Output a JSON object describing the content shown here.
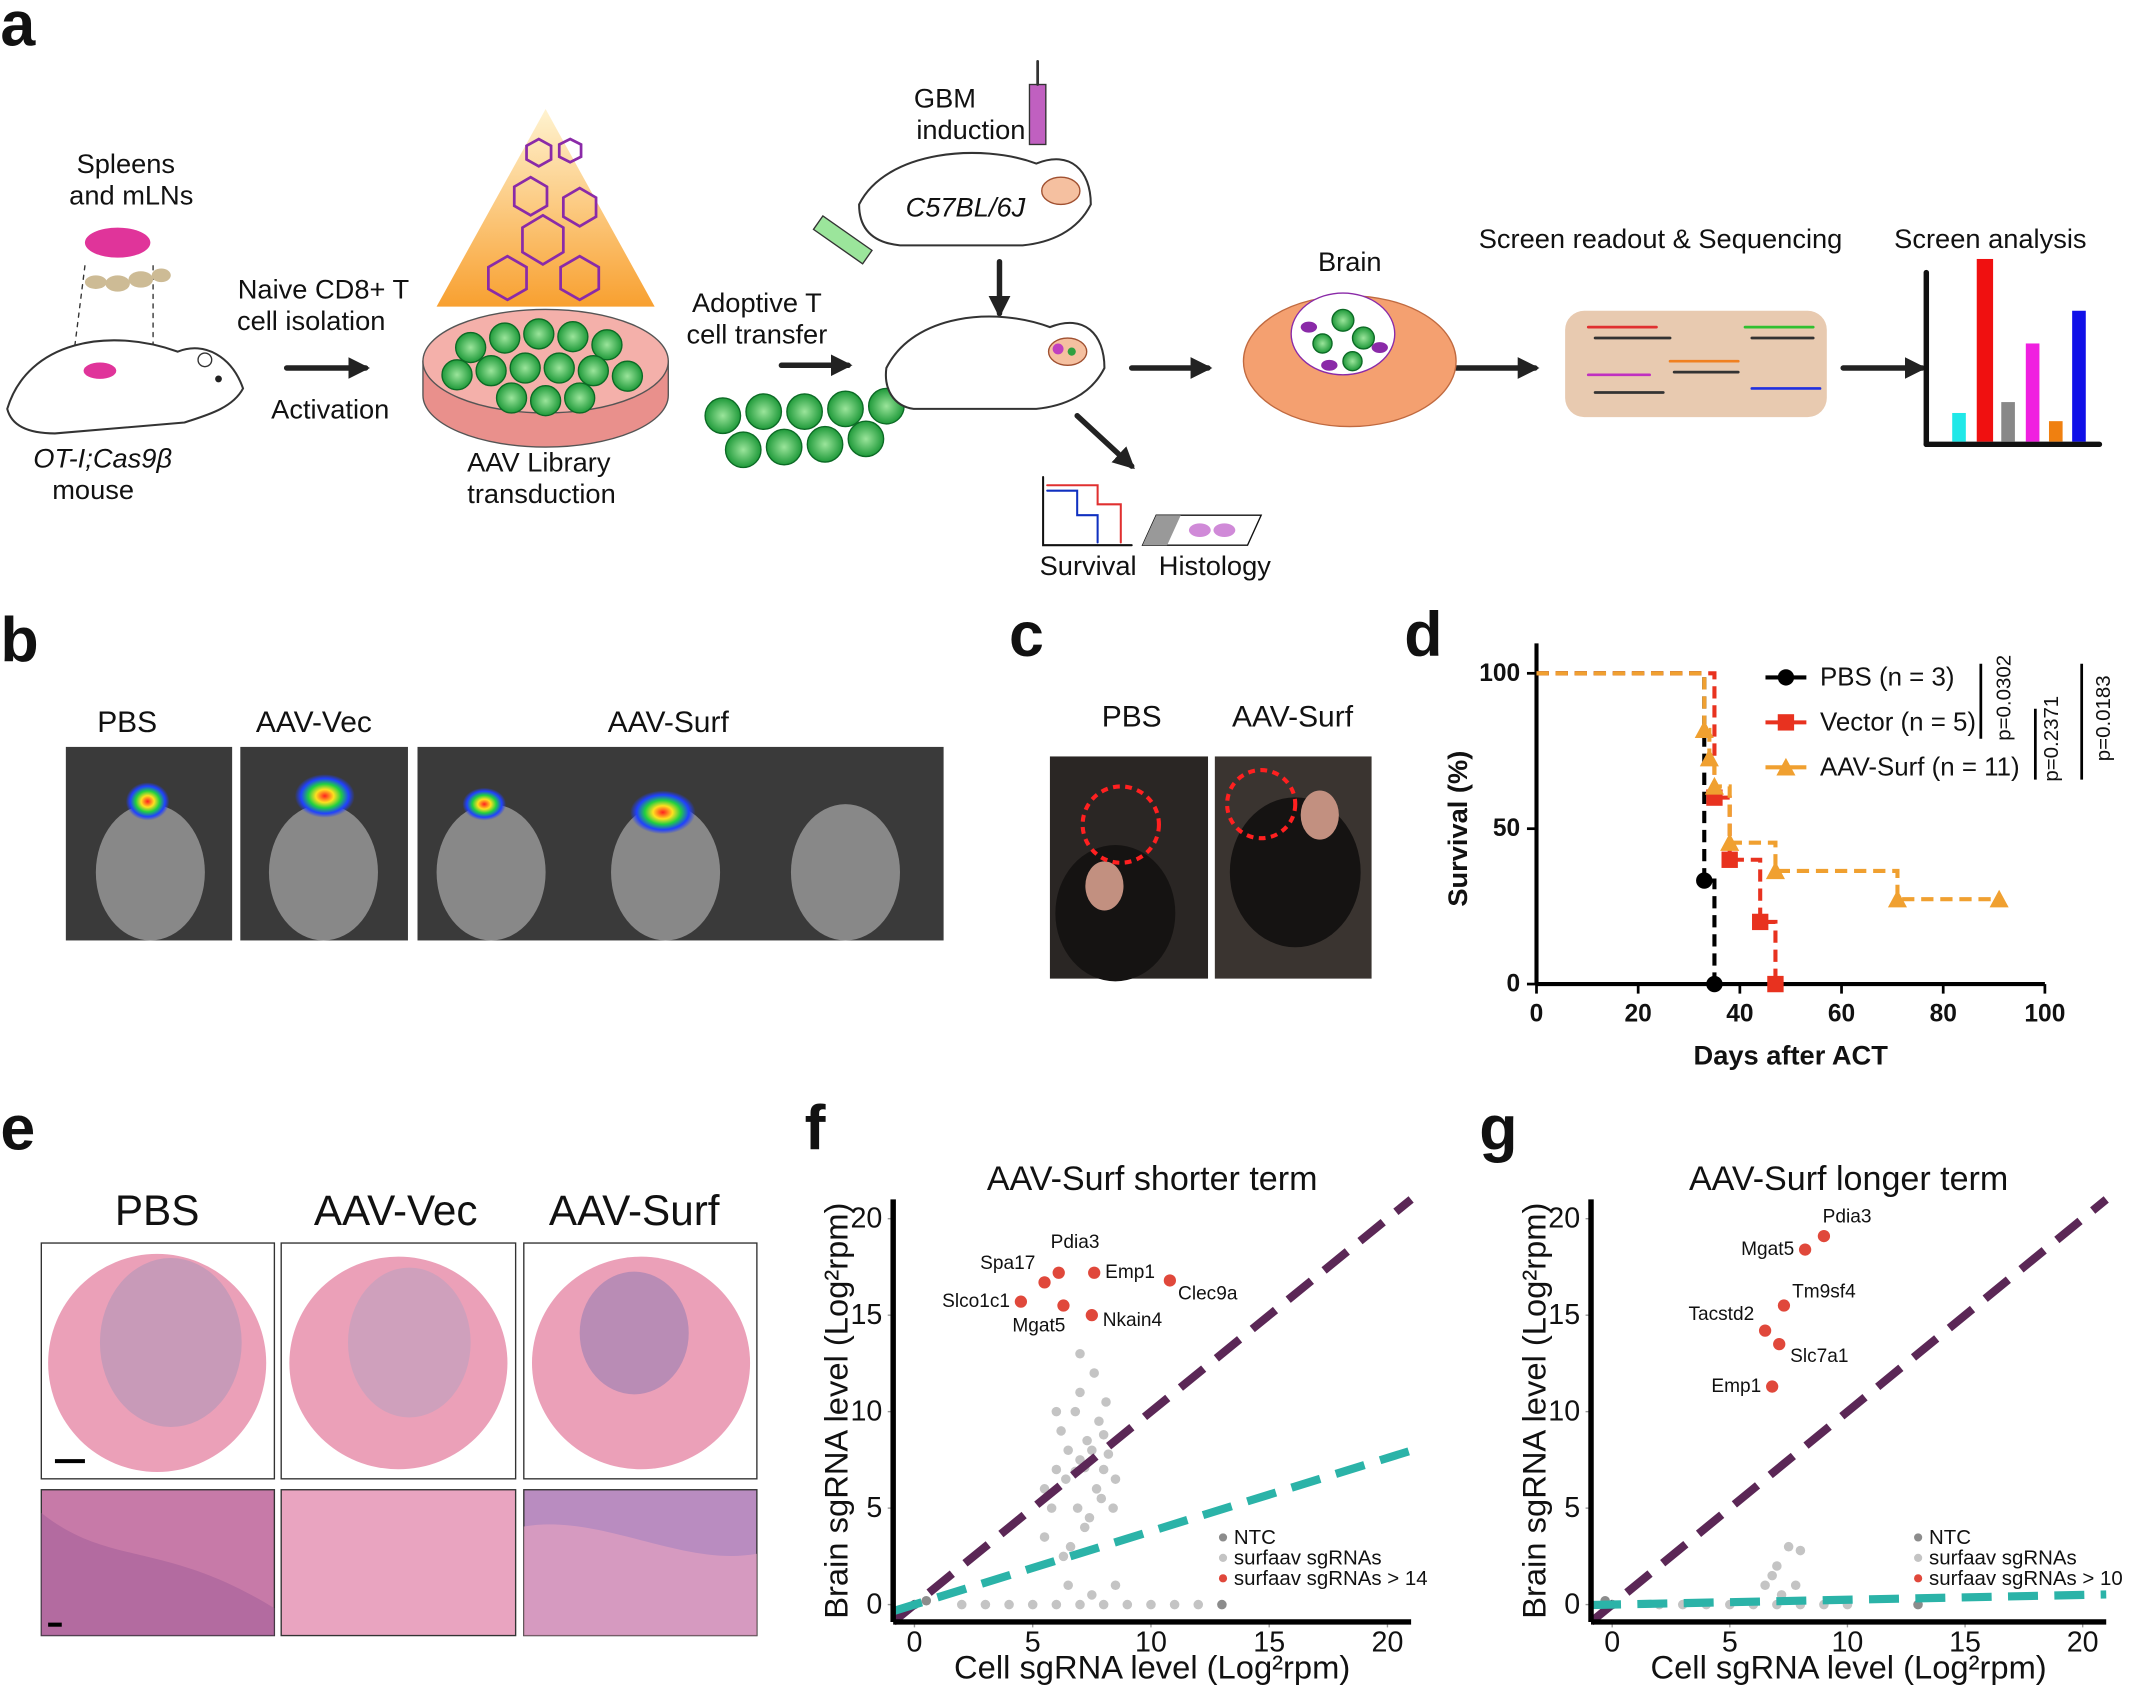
{
  "panel_labels": [
    "a",
    "b",
    "c",
    "d",
    "e",
    "f",
    "g"
  ],
  "panel_a": {
    "spleens": [
      "Spleens",
      "and mLNs"
    ],
    "mouse": [
      "OT-I;Cas9β",
      "mouse"
    ],
    "isolation": [
      "Naive CD8+ T",
      "cell isolation"
    ],
    "activation": "Activation",
    "library": [
      "AAV Library",
      "transduction"
    ],
    "transfer": [
      "Adoptive T",
      "cell transfer"
    ],
    "gbm": [
      "GBM",
      "induction"
    ],
    "strain": "C57BL/6J",
    "brain": "Brain",
    "readout": "Screen readout & Sequencing",
    "analysis": "Screen analysis",
    "survival": "Survival",
    "histology": "Histology"
  },
  "panel_b": {
    "groups": [
      "PBS",
      "AAV-Vec",
      "AAV-Surf"
    ]
  },
  "panel_c": {
    "groups": [
      "PBS",
      "AAV-Surf"
    ]
  },
  "panel_e": {
    "groups": [
      "PBS",
      "AAV-Vec",
      "AAV-Surf"
    ]
  },
  "chart_data": [
    {
      "type": "step",
      "x_label": "Days after ACT",
      "y_label": "Survival (%)",
      "xlim": [
        0,
        100
      ],
      "ylim": [
        0,
        100
      ],
      "xticks": [
        0,
        20,
        40,
        60,
        80,
        100
      ],
      "yticks": [
        0,
        50,
        100
      ],
      "legend": "top-right",
      "series": [
        {
          "name": "PBS (n = 3)",
          "color": "#000000",
          "marker": "circle",
          "x": [
            0,
            33,
            35
          ],
          "values": [
            100,
            33.3,
            0
          ]
        },
        {
          "name": "Vector (n = 5)",
          "color": "#e8321f",
          "marker": "square",
          "x": [
            0,
            35,
            38,
            44,
            47
          ],
          "values": [
            100,
            60,
            40,
            20,
            0
          ]
        },
        {
          "name": "AAV-Surf (n = 11)",
          "color": "#f0a030",
          "marker": "triangle",
          "x": [
            0,
            33,
            34,
            35,
            38,
            47,
            71,
            91
          ],
          "values": [
            100,
            81.8,
            72.7,
            63.6,
            45.5,
            36.4,
            27.3,
            27.3
          ]
        }
      ],
      "annotations": [
        "p=0.0302",
        "p=0.2371",
        "p=0.0183"
      ]
    },
    {
      "type": "scatter",
      "title": "AAV-Surf shorter term",
      "x_label": "Cell sgRNA level (Log²rpm)",
      "y_label": "Brain sgRNA level (Log²rpm)",
      "xlim": [
        -0.9,
        21
      ],
      "ylim": [
        -0.9,
        21
      ],
      "xticks": [
        0,
        5,
        10,
        15,
        20
      ],
      "yticks": [
        0,
        5,
        10,
        15,
        20
      ],
      "legend": "bottom-right",
      "reference_lines": [
        {
          "color": "#5b2756",
          "slope": 1
        },
        {
          "color": "#2bb3a8",
          "slope": 0.38
        }
      ],
      "series": [
        {
          "name": "NTC",
          "color": "#8c8c8c",
          "x": [
            0,
            0.5,
            13
          ],
          "values": [
            0,
            0.2,
            0
          ]
        },
        {
          "name": "surfaav sgRNAs",
          "color": "#c4c4c4",
          "x": [
            5.5,
            6,
            6.5,
            7,
            7.5,
            8,
            8.5,
            6.2,
            6.8,
            7.3,
            7.8,
            8.2,
            5.8,
            6.4,
            7,
            7.6,
            8.1,
            6.6,
            7.2,
            7.9,
            6.9,
            7.4,
            6.3,
            7.7,
            8.4,
            2,
            3,
            4,
            5,
            6,
            7,
            8,
            9,
            10,
            11,
            12,
            6.5,
            7.5,
            8.5,
            5.5,
            7,
            6,
            8,
            7.2,
            6.8
          ],
          "values": [
            6,
            7,
            8,
            7.5,
            8,
            7,
            6.5,
            9,
            10,
            8.5,
            9.5,
            7.8,
            5,
            6.5,
            11,
            12,
            10.5,
            3,
            4,
            5.5,
            5,
            4.5,
            2.5,
            6,
            5,
            0,
            0,
            0,
            0,
            0,
            0,
            0,
            0,
            0,
            0,
            0,
            1,
            0.5,
            1,
            3.5,
            13,
            10,
            8.8,
            7.1,
            6.9
          ]
        },
        {
          "name": "surfaav sgRNAs > 14",
          "color": "#e0483b",
          "x": [
            4.5,
            5.5,
            6.1,
            7.6,
            10.8,
            6.3,
            7.5
          ],
          "values": [
            15.7,
            16.7,
            17.2,
            17.2,
            16.8,
            15.5,
            15.0
          ],
          "labels": [
            "Slco1c1",
            "Spa17",
            "Pdia3",
            "Emp1",
            "Clec9a",
            "Mgat5",
            "Nkain4"
          ]
        }
      ]
    },
    {
      "type": "scatter",
      "title": "AAV-Surf longer term",
      "x_label": "Cell sgRNA level (Log²rpm)",
      "y_label": "Brain sgRNA level (Log²rpm)",
      "xlim": [
        -0.9,
        21
      ],
      "ylim": [
        -0.9,
        21
      ],
      "xticks": [
        0,
        5,
        10,
        15,
        20
      ],
      "yticks": [
        0,
        5,
        10,
        15,
        20
      ],
      "legend": "bottom-right",
      "reference_lines": [
        {
          "color": "#5b2756",
          "slope": 1
        },
        {
          "color": "#2bb3a8",
          "slope": 0.025
        }
      ],
      "series": [
        {
          "name": "NTC",
          "color": "#8c8c8c",
          "x": [
            0,
            -0.3,
            13
          ],
          "values": [
            0,
            0.2,
            0
          ]
        },
        {
          "name": "surfaav sgRNAs",
          "color": "#c4c4c4",
          "x": [
            2,
            3,
            4,
            5,
            6,
            7,
            8,
            9,
            10,
            6.5,
            7,
            7.5,
            8,
            7.2,
            6.8,
            7.8
          ],
          "values": [
            0,
            0,
            0,
            0,
            0,
            0,
            0,
            0,
            0,
            1,
            2,
            3,
            2.8,
            0.5,
            1.5,
            1
          ]
        },
        {
          "name": "surfaav sgRNAs > 10",
          "color": "#e0483b",
          "x": [
            9.0,
            8.2,
            7.3,
            6.5,
            7.1,
            6.8
          ],
          "values": [
            19.1,
            18.4,
            15.5,
            14.2,
            13.5,
            11.3
          ],
          "labels": [
            "Pdia3",
            "Mgat5",
            "Tm9sf4",
            "Tacstd2",
            "Slc7a1",
            "Emp1"
          ]
        }
      ]
    }
  ]
}
